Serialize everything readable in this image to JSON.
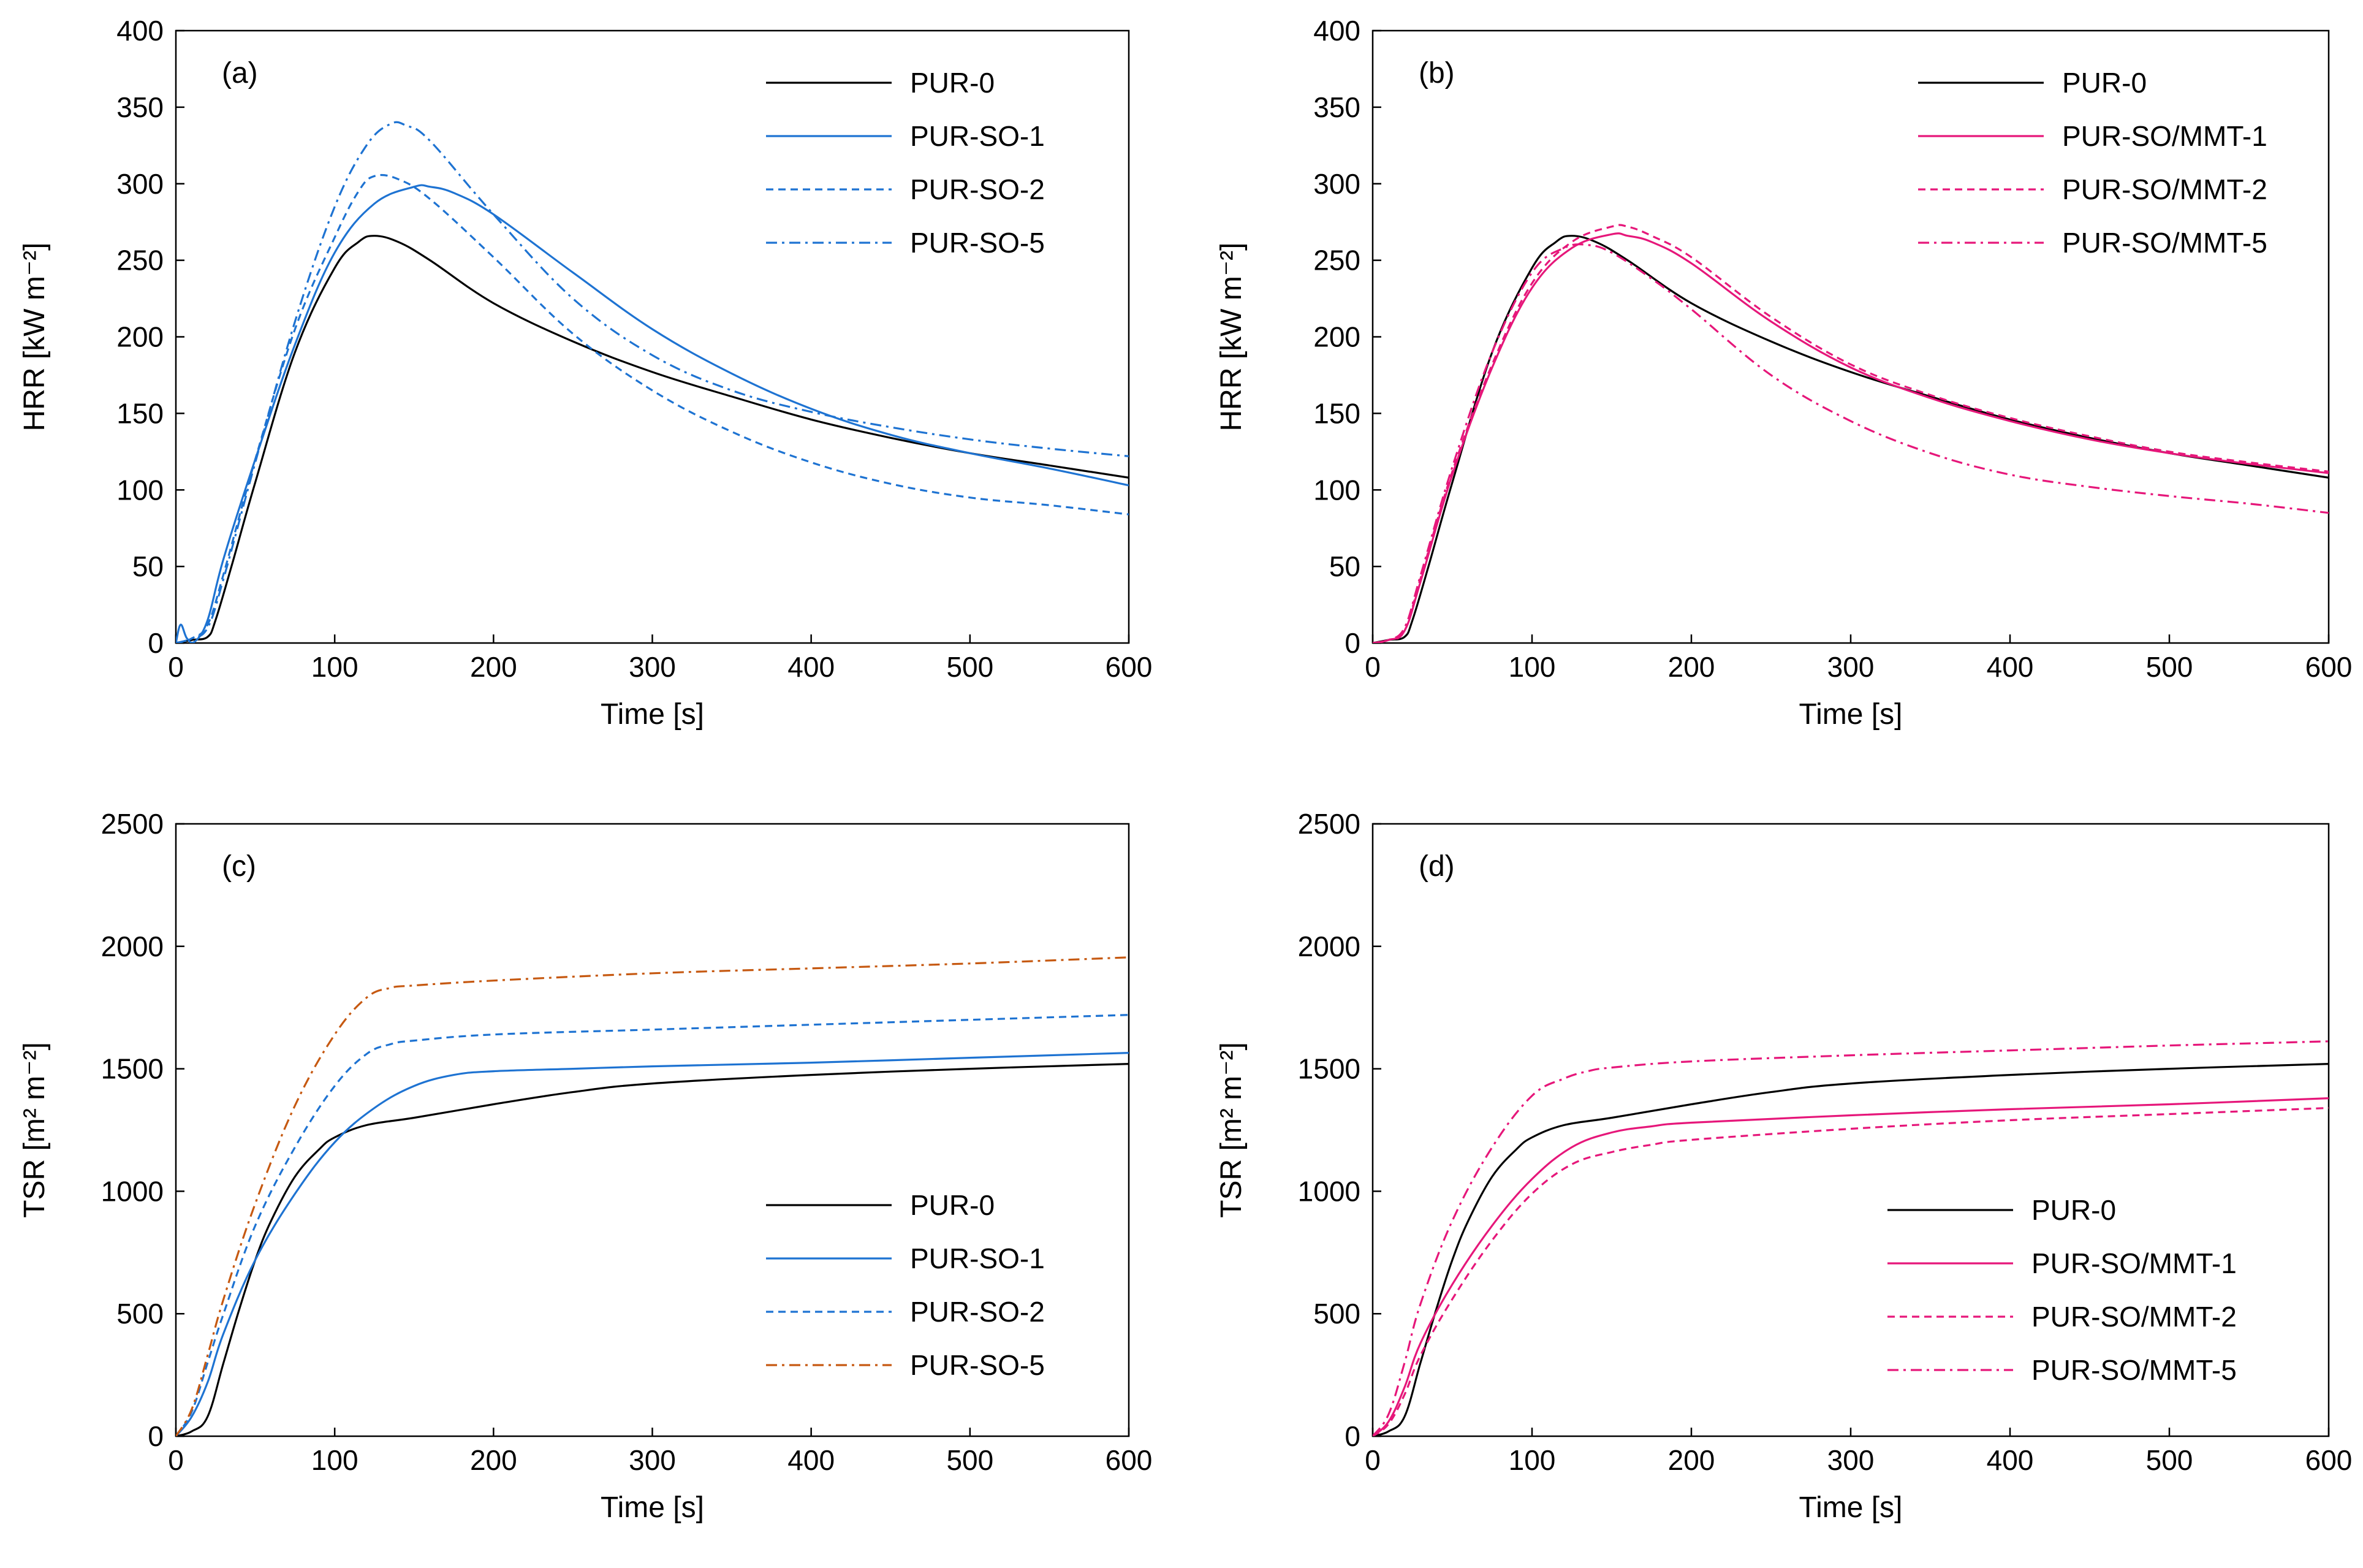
{
  "chart_data": [
    {
      "panel": "(a)",
      "type": "line",
      "xlabel": "Time [s]",
      "ylabel": "HRR [kW m⁻²]",
      "xlim": [
        0,
        600
      ],
      "ylim": [
        0,
        400
      ],
      "xticks": [
        0,
        100,
        200,
        300,
        400,
        500,
        600
      ],
      "yticks": [
        0,
        50,
        100,
        150,
        200,
        250,
        300,
        350,
        400
      ],
      "legend_position": "top-right",
      "series": [
        {
          "name": "PUR-0",
          "color": "#000000",
          "dash": "solid",
          "x": [
            0,
            10,
            20,
            25,
            35,
            50,
            75,
            100,
            115,
            125,
            140,
            160,
            200,
            250,
            300,
            350,
            400,
            450,
            500,
            550,
            600
          ],
          "y": [
            0,
            2,
            4,
            15,
            50,
            105,
            190,
            245,
            262,
            266,
            262,
            250,
            222,
            197,
            177,
            161,
            146,
            134,
            124,
            116,
            108
          ]
        },
        {
          "name": "PUR-SO-1",
          "color": "#1E73D2",
          "dash": "solid",
          "x": [
            0,
            3,
            7,
            12,
            20,
            30,
            50,
            75,
            100,
            125,
            150,
            160,
            175,
            200,
            250,
            300,
            350,
            400,
            450,
            500,
            550,
            600
          ],
          "y": [
            0,
            12,
            3,
            1,
            15,
            55,
            120,
            195,
            255,
            287,
            298,
            298,
            294,
            280,
            242,
            205,
            176,
            153,
            136,
            124,
            114,
            103
          ]
        },
        {
          "name": "PUR-SO-2",
          "color": "#1E73D2",
          "dash": "dash",
          "x": [
            0,
            10,
            20,
            30,
            50,
            75,
            100,
            115,
            125,
            140,
            160,
            200,
            250,
            300,
            350,
            400,
            450,
            500,
            550,
            600
          ],
          "y": [
            0,
            3,
            12,
            45,
            120,
            205,
            265,
            295,
            305,
            303,
            290,
            252,
            202,
            165,
            138,
            118,
            104,
            95,
            90,
            84
          ]
        },
        {
          "name": "PUR-SO-5",
          "color": "#1E73D2",
          "dash": "dashdot",
          "x": [
            0,
            10,
            20,
            30,
            50,
            75,
            100,
            120,
            135,
            145,
            160,
            200,
            250,
            300,
            350,
            400,
            450,
            500,
            550,
            600
          ],
          "y": [
            0,
            3,
            10,
            42,
            118,
            210,
            285,
            325,
            339,
            338,
            328,
            280,
            225,
            188,
            165,
            151,
            141,
            133,
            127,
            122
          ]
        }
      ]
    },
    {
      "panel": "(b)",
      "type": "line",
      "xlabel": "Time [s]",
      "ylabel": "HRR [kW m⁻²]",
      "xlim": [
        0,
        600
      ],
      "ylim": [
        0,
        400
      ],
      "xticks": [
        0,
        100,
        200,
        300,
        400,
        500,
        600
      ],
      "yticks": [
        0,
        50,
        100,
        150,
        200,
        250,
        300,
        350,
        400
      ],
      "legend_position": "top-right",
      "series": [
        {
          "name": "PUR-0",
          "color": "#000000",
          "dash": "solid",
          "x": [
            0,
            10,
            20,
            25,
            35,
            50,
            75,
            100,
            115,
            125,
            140,
            160,
            200,
            250,
            300,
            350,
            400,
            450,
            500,
            550,
            600
          ],
          "y": [
            0,
            2,
            4,
            15,
            50,
            105,
            190,
            245,
            262,
            266,
            262,
            250,
            222,
            197,
            177,
            161,
            146,
            134,
            124,
            116,
            108
          ]
        },
        {
          "name": "PUR-SO/MMT-1",
          "color": "#E6177A",
          "dash": "solid",
          "x": [
            0,
            10,
            20,
            30,
            50,
            75,
            100,
            125,
            150,
            160,
            175,
            200,
            250,
            300,
            350,
            400,
            450,
            500,
            550,
            600
          ],
          "y": [
            0,
            2,
            8,
            40,
            110,
            180,
            232,
            258,
            267,
            266,
            262,
            248,
            210,
            180,
            160,
            145,
            133,
            124,
            117,
            111
          ]
        },
        {
          "name": "PUR-SO/MMT-2",
          "color": "#E6177A",
          "dash": "dash",
          "x": [
            0,
            10,
            20,
            30,
            50,
            75,
            100,
            125,
            150,
            160,
            175,
            200,
            250,
            300,
            350,
            400,
            450,
            500,
            550,
            600
          ],
          "y": [
            0,
            2,
            8,
            42,
            112,
            182,
            235,
            262,
            272,
            272,
            266,
            252,
            213,
            182,
            162,
            147,
            135,
            125,
            118,
            112
          ]
        },
        {
          "name": "PUR-SO/MMT-5",
          "color": "#E6177A",
          "dash": "dashdot",
          "x": [
            0,
            10,
            20,
            30,
            50,
            75,
            100,
            120,
            135,
            150,
            175,
            200,
            250,
            300,
            350,
            400,
            450,
            500,
            550,
            600
          ],
          "y": [
            0,
            2,
            10,
            44,
            115,
            190,
            242,
            258,
            260,
            255,
            238,
            218,
            175,
            145,
            124,
            110,
            102,
            96,
            91,
            85
          ]
        }
      ]
    },
    {
      "panel": "(c)",
      "type": "line",
      "xlabel": "Time [s]",
      "ylabel": "TSR  [m² m⁻²]",
      "xlim": [
        0,
        600
      ],
      "ylim": [
        0,
        2500
      ],
      "xticks": [
        0,
        100,
        200,
        300,
        400,
        500,
        600
      ],
      "yticks": [
        0,
        500,
        1000,
        1500,
        2000,
        2500
      ],
      "legend_position": "bottom-right",
      "series": [
        {
          "name": "PUR-0",
          "color": "#000000",
          "dash": "solid",
          "x": [
            0,
            10,
            20,
            30,
            40,
            50,
            60,
            75,
            90,
            100,
            120,
            150,
            200,
            250,
            300,
            400,
            500,
            600
          ],
          "y": [
            0,
            20,
            80,
            300,
            520,
            720,
            880,
            1060,
            1170,
            1220,
            1270,
            1300,
            1355,
            1405,
            1440,
            1475,
            1500,
            1520
          ]
        },
        {
          "name": "PUR-SO-1",
          "color": "#1E73D2",
          "dash": "solid",
          "x": [
            0,
            10,
            20,
            30,
            50,
            75,
            100,
            125,
            150,
            175,
            200,
            250,
            300,
            400,
            500,
            600
          ],
          "y": [
            0,
            80,
            220,
            420,
            720,
            990,
            1200,
            1340,
            1430,
            1475,
            1490,
            1500,
            1510,
            1525,
            1545,
            1565
          ]
        },
        {
          "name": "PUR-SO-2",
          "color": "#1E73D2",
          "dash": "dash",
          "x": [
            0,
            10,
            20,
            30,
            50,
            75,
            100,
            120,
            135,
            150,
            200,
            300,
            400,
            500,
            600
          ],
          "y": [
            0,
            100,
            300,
            500,
            860,
            1180,
            1430,
            1560,
            1600,
            1615,
            1640,
            1660,
            1680,
            1700,
            1720
          ]
        },
        {
          "name": "PUR-SO-5",
          "color": "#C65911",
          "dash": "dashdot",
          "x": [
            0,
            10,
            20,
            30,
            50,
            75,
            100,
            120,
            135,
            150,
            200,
            300,
            400,
            500,
            600
          ],
          "y": [
            0,
            110,
            330,
            560,
            950,
            1350,
            1640,
            1790,
            1830,
            1840,
            1860,
            1890,
            1910,
            1930,
            1955
          ]
        }
      ]
    },
    {
      "panel": "(d)",
      "type": "line",
      "xlabel": "Time [s]",
      "ylabel": "TSR [m² m⁻²]",
      "xlim": [
        0,
        600
      ],
      "ylim": [
        0,
        2500
      ],
      "xticks": [
        0,
        100,
        200,
        300,
        400,
        500,
        600
      ],
      "yticks": [
        0,
        500,
        1000,
        1500,
        2000,
        2500
      ],
      "legend_position": "bottom-right",
      "series": [
        {
          "name": "PUR-0",
          "color": "#000000",
          "dash": "solid",
          "x": [
            0,
            10,
            20,
            30,
            40,
            50,
            60,
            75,
            90,
            100,
            120,
            150,
            200,
            250,
            300,
            400,
            500,
            600
          ],
          "y": [
            0,
            20,
            80,
            300,
            520,
            720,
            880,
            1060,
            1170,
            1220,
            1270,
            1300,
            1355,
            1405,
            1440,
            1475,
            1500,
            1520
          ]
        },
        {
          "name": "PUR-SO/MMT-1",
          "color": "#E6177A",
          "dash": "solid",
          "x": [
            0,
            10,
            20,
            30,
            50,
            75,
            100,
            125,
            150,
            175,
            200,
            300,
            400,
            500,
            600
          ],
          "y": [
            0,
            60,
            200,
            380,
            620,
            860,
            1050,
            1180,
            1240,
            1265,
            1280,
            1310,
            1335,
            1355,
            1380
          ]
        },
        {
          "name": "PUR-SO/MMT-2",
          "color": "#E6177A",
          "dash": "dash",
          "x": [
            0,
            10,
            20,
            30,
            50,
            75,
            100,
            125,
            150,
            175,
            200,
            300,
            400,
            500,
            600
          ],
          "y": [
            0,
            50,
            170,
            330,
            560,
            800,
            990,
            1110,
            1160,
            1190,
            1210,
            1255,
            1290,
            1315,
            1340
          ]
        },
        {
          "name": "PUR-SO/MMT-5",
          "color": "#E6177A",
          "dash": "dashdot",
          "x": [
            0,
            10,
            20,
            30,
            50,
            75,
            100,
            120,
            135,
            150,
            200,
            300,
            400,
            500,
            600
          ],
          "y": [
            0,
            90,
            300,
            540,
            880,
            1180,
            1390,
            1460,
            1490,
            1505,
            1530,
            1555,
            1575,
            1595,
            1612
          ]
        }
      ]
    }
  ]
}
